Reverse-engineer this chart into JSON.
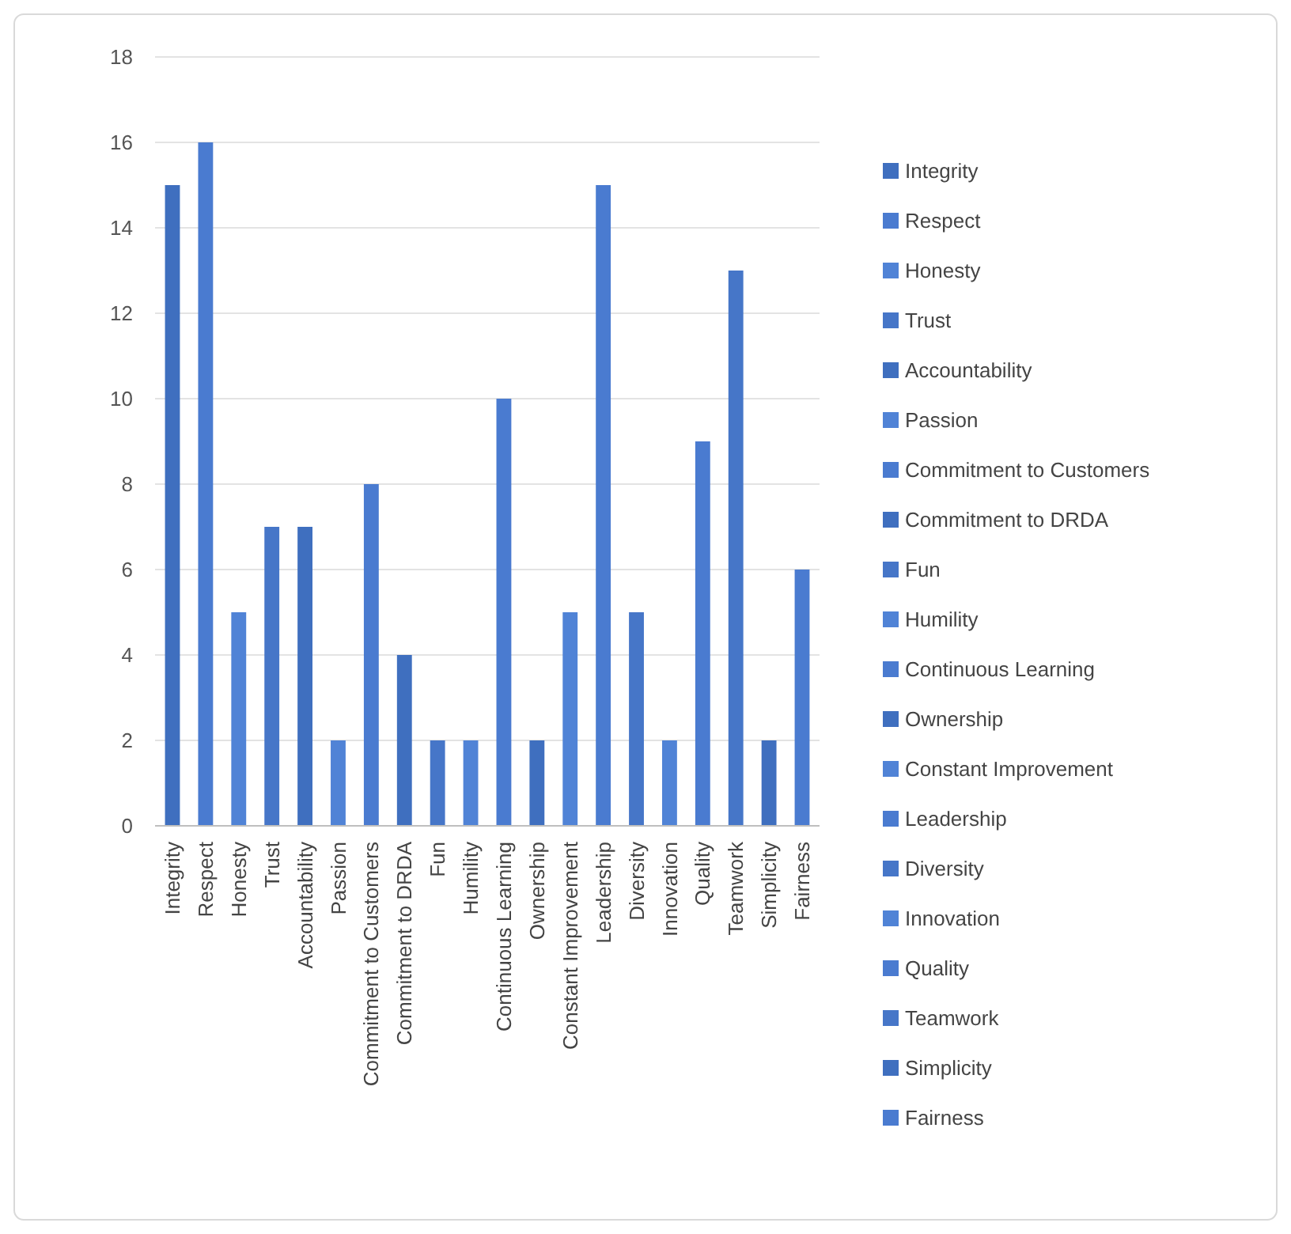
{
  "chart_data": {
    "type": "bar",
    "categories": [
      "Integrity",
      "Respect",
      "Honesty",
      "Trust",
      "Accountability",
      "Passion",
      "Commitment to Customers",
      "Commitment to DRDA",
      "Fun",
      "Humility",
      "Continuous Learning",
      "Ownership",
      "Constant Improvement",
      "Leadership",
      "Diversity",
      "Innovation",
      "Quality",
      "Teamwork",
      "Simplicity",
      "Fairness"
    ],
    "series": [
      {
        "name": "Integrity",
        "color": "#3f6fbf",
        "values": [
          15,
          null,
          null,
          null,
          null,
          null,
          null,
          null,
          null,
          null,
          null,
          null,
          null,
          null,
          null,
          null,
          null,
          null,
          null,
          null
        ]
      },
      {
        "name": "Respect",
        "color": "#4a7bd0",
        "values": [
          null,
          16,
          null,
          null,
          null,
          null,
          null,
          null,
          null,
          null,
          null,
          null,
          null,
          null,
          null,
          null,
          null,
          null,
          null,
          null
        ]
      },
      {
        "name": "Honesty",
        "color": "#5083d6",
        "values": [
          null,
          null,
          5,
          null,
          null,
          null,
          null,
          null,
          null,
          null,
          null,
          null,
          null,
          null,
          null,
          null,
          null,
          null,
          null,
          null
        ]
      },
      {
        "name": "Trust",
        "color": "#4676c8",
        "values": [
          null,
          null,
          null,
          7,
          null,
          null,
          null,
          null,
          null,
          null,
          null,
          null,
          null,
          null,
          null,
          null,
          null,
          null,
          null,
          null
        ]
      },
      {
        "name": "Accountability",
        "color": "#3f6fbf",
        "values": [
          null,
          null,
          null,
          null,
          7,
          null,
          null,
          null,
          null,
          null,
          null,
          null,
          null,
          null,
          null,
          null,
          null,
          null,
          null,
          null
        ]
      },
      {
        "name": "Passion",
        "color": "#5083d6",
        "values": [
          null,
          null,
          null,
          null,
          null,
          2,
          null,
          null,
          null,
          null,
          null,
          null,
          null,
          null,
          null,
          null,
          null,
          null,
          null,
          null
        ]
      },
      {
        "name": "Commitment to Customers",
        "color": "#4a7bd0",
        "values": [
          null,
          null,
          null,
          null,
          null,
          null,
          8,
          null,
          null,
          null,
          null,
          null,
          null,
          null,
          null,
          null,
          null,
          null,
          null,
          null
        ]
      },
      {
        "name": "Commitment to DRDA",
        "color": "#3f6fbf",
        "values": [
          null,
          null,
          null,
          null,
          null,
          null,
          null,
          4,
          null,
          null,
          null,
          null,
          null,
          null,
          null,
          null,
          null,
          null,
          null,
          null
        ]
      },
      {
        "name": "Fun",
        "color": "#4676c8",
        "values": [
          null,
          null,
          null,
          null,
          null,
          null,
          null,
          null,
          2,
          null,
          null,
          null,
          null,
          null,
          null,
          null,
          null,
          null,
          null,
          null
        ]
      },
      {
        "name": "Humility",
        "color": "#5083d6",
        "values": [
          null,
          null,
          null,
          null,
          null,
          null,
          null,
          null,
          null,
          2,
          null,
          null,
          null,
          null,
          null,
          null,
          null,
          null,
          null,
          null
        ]
      },
      {
        "name": "Continuous Learning",
        "color": "#4a7bd0",
        "values": [
          null,
          null,
          null,
          null,
          null,
          null,
          null,
          null,
          null,
          null,
          10,
          null,
          null,
          null,
          null,
          null,
          null,
          null,
          null,
          null
        ]
      },
      {
        "name": "Ownership",
        "color": "#3f6fbf",
        "values": [
          null,
          null,
          null,
          null,
          null,
          null,
          null,
          null,
          null,
          null,
          null,
          2,
          null,
          null,
          null,
          null,
          null,
          null,
          null,
          null
        ]
      },
      {
        "name": "Constant Improvement",
        "color": "#5083d6",
        "values": [
          null,
          null,
          null,
          null,
          null,
          null,
          null,
          null,
          null,
          null,
          null,
          null,
          5,
          null,
          null,
          null,
          null,
          null,
          null,
          null
        ]
      },
      {
        "name": "Leadership",
        "color": "#4a7bd0",
        "values": [
          null,
          null,
          null,
          null,
          null,
          null,
          null,
          null,
          null,
          null,
          null,
          null,
          null,
          15,
          null,
          null,
          null,
          null,
          null,
          null
        ]
      },
      {
        "name": "Diversity",
        "color": "#4676c8",
        "values": [
          null,
          null,
          null,
          null,
          null,
          null,
          null,
          null,
          null,
          null,
          null,
          null,
          null,
          null,
          5,
          null,
          null,
          null,
          null,
          null
        ]
      },
      {
        "name": "Innovation",
        "color": "#5083d6",
        "values": [
          null,
          null,
          null,
          null,
          null,
          null,
          null,
          null,
          null,
          null,
          null,
          null,
          null,
          null,
          null,
          2,
          null,
          null,
          null,
          null
        ]
      },
      {
        "name": "Quality",
        "color": "#4a7bd0",
        "values": [
          null,
          null,
          null,
          null,
          null,
          null,
          null,
          null,
          null,
          null,
          null,
          null,
          null,
          null,
          null,
          null,
          9,
          null,
          null,
          null
        ]
      },
      {
        "name": "Teamwork",
        "color": "#4676c8",
        "values": [
          null,
          null,
          null,
          null,
          null,
          null,
          null,
          null,
          null,
          null,
          null,
          null,
          null,
          null,
          null,
          null,
          null,
          13,
          null,
          null
        ]
      },
      {
        "name": "Simplicity",
        "color": "#3f6fbf",
        "values": [
          null,
          null,
          null,
          null,
          null,
          null,
          null,
          null,
          null,
          null,
          null,
          null,
          null,
          null,
          null,
          null,
          null,
          null,
          2,
          null
        ]
      },
      {
        "name": "Fairness",
        "color": "#4a7bd0",
        "values": [
          null,
          null,
          null,
          null,
          null,
          null,
          null,
          null,
          null,
          null,
          null,
          null,
          null,
          null,
          null,
          null,
          null,
          null,
          null,
          6
        ]
      }
    ],
    "ylim": [
      0,
      18
    ],
    "yticks": [
      0,
      2,
      4,
      6,
      8,
      10,
      12,
      14,
      16,
      18
    ],
    "grid": "y",
    "legend": "right"
  }
}
